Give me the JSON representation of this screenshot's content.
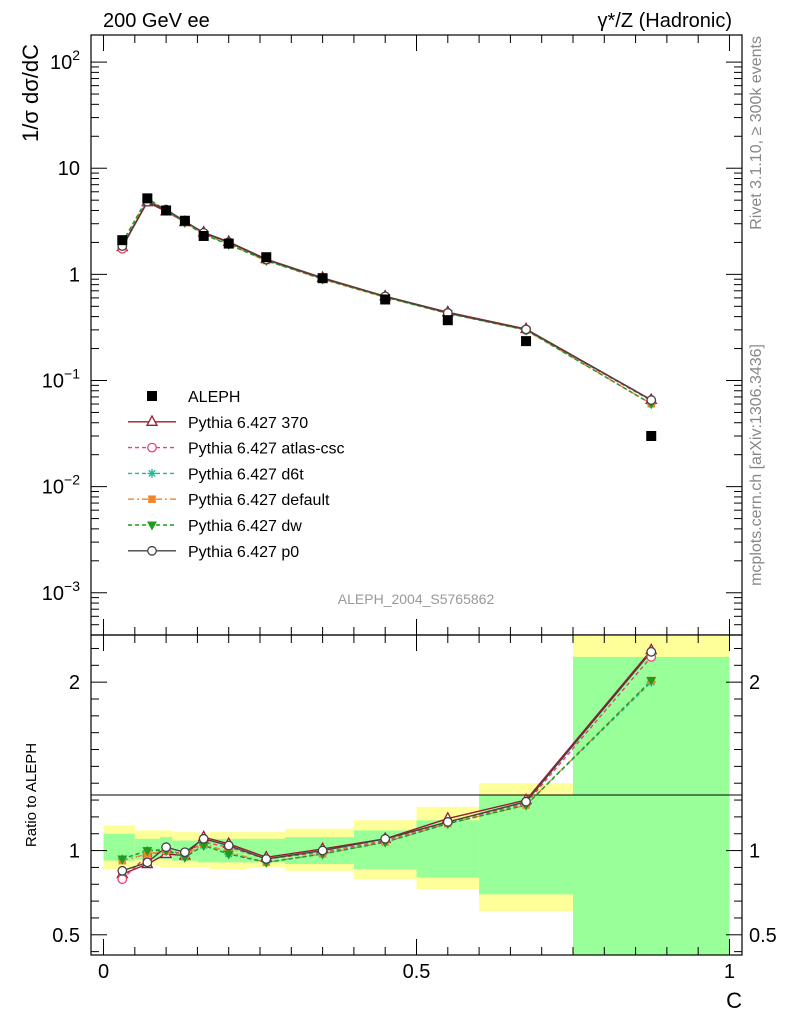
{
  "chart_data": {
    "type": "scatter",
    "title_left": "200 GeV ee",
    "title_right": "γ*/Z (Hadronic)",
    "ylabel": "1/σ dσ/dC",
    "xlabel": "C",
    "ratio_ylabel": "Ratio to ALEPH",
    "analysis_label": "ALEPH_2004_S5765862",
    "side_label_top": "Rivet 3.1.10, ≥ 300k events",
    "side_label_bottom": "mcplots.cern.ch [arXiv:1306.3436]",
    "xlim": [
      -0.02,
      1.02
    ],
    "ylim_main": [
      0.0004,
      180
    ],
    "ylim_ratio": [
      0.38,
      2.28
    ],
    "x_ticks": [
      {
        "value": 0,
        "label": "0"
      },
      {
        "value": 0.5,
        "label": "0.5"
      },
      {
        "value": 1,
        "label": "1"
      }
    ],
    "y_ticks_main": [
      {
        "value": 0.001,
        "base": "10",
        "exp": "−3"
      },
      {
        "value": 0.01,
        "base": "10",
        "exp": "−2"
      },
      {
        "value": 0.1,
        "base": "10",
        "exp": "−1"
      },
      {
        "value": 1,
        "base": "1",
        "exp": ""
      },
      {
        "value": 10,
        "base": "10",
        "exp": ""
      },
      {
        "value": 100,
        "base": "10",
        "exp": "2"
      }
    ],
    "y_ticks_ratio": [
      {
        "value": 0.5,
        "label": "0.5"
      },
      {
        "value": 1,
        "label": "1"
      },
      {
        "value": 2,
        "label": "2"
      }
    ],
    "x": [
      0.03,
      0.07,
      0.1,
      0.13,
      0.16,
      0.2,
      0.26,
      0.35,
      0.45,
      0.55,
      0.675,
      0.875
    ],
    "bin_edges": [
      0.0,
      0.05,
      0.09,
      0.11,
      0.15,
      0.17,
      0.23,
      0.29,
      0.4,
      0.5,
      0.6,
      0.75,
      1.0
    ],
    "data": {
      "name": "ALEPH",
      "values": [
        2.1,
        5.2,
        4.0,
        3.2,
        2.3,
        1.95,
        1.45,
        0.92,
        0.58,
        0.37,
        0.235,
        0.03
      ]
    },
    "bands": {
      "inner": [
        [
          0.94,
          1.1
        ],
        [
          0.95,
          1.07
        ],
        [
          0.95,
          1.08
        ],
        [
          0.94,
          1.06
        ],
        [
          0.93,
          1.06
        ],
        [
          0.93,
          1.07
        ],
        [
          0.93,
          1.07
        ],
        [
          0.92,
          1.08
        ],
        [
          0.89,
          1.12
        ],
        [
          0.84,
          1.18
        ],
        [
          0.74,
          1.33
        ],
        [
          0.38,
          2.15
        ]
      ],
      "outer": [
        [
          0.89,
          1.15
        ],
        [
          0.91,
          1.12
        ],
        [
          0.9,
          1.12
        ],
        [
          0.9,
          1.11
        ],
        [
          0.9,
          1.1
        ],
        [
          0.89,
          1.11
        ],
        [
          0.9,
          1.11
        ],
        [
          0.88,
          1.13
        ],
        [
          0.83,
          1.18
        ],
        [
          0.77,
          1.26
        ],
        [
          0.64,
          1.4
        ],
        [
          0.38,
          2.28
        ]
      ]
    },
    "series": [
      {
        "name": "Pythia 6.427 370",
        "color": "#9b1c2e",
        "marker": "triangle-open",
        "dash": "",
        "ratio": [
          0.86,
          0.92,
          0.98,
          0.97,
          1.08,
          1.04,
          0.96,
          1.01,
          1.07,
          1.19,
          1.3,
          2.19
        ]
      },
      {
        "name": "Pythia 6.427 atlas-csc",
        "color": "#e8436e",
        "marker": "circle-open",
        "dash": "4,3",
        "ratio": [
          0.83,
          0.97,
          1.0,
          0.98,
          1.05,
          1.02,
          0.95,
          0.99,
          1.06,
          1.17,
          1.28,
          2.15
        ]
      },
      {
        "name": "Pythia 6.427 d6t",
        "color": "#2bb5a0",
        "marker": "asterisk",
        "dash": "4,3",
        "ratio": [
          0.95,
          1.0,
          1.01,
          0.96,
          1.03,
          0.98,
          0.93,
          0.98,
          1.05,
          1.16,
          1.27,
          2.0
        ]
      },
      {
        "name": "Pythia 6.427 default",
        "color": "#f0852d",
        "marker": "square",
        "dash": "6,3,2,3",
        "ratio": [
          0.94,
          0.98,
          1.0,
          0.97,
          1.04,
          0.99,
          0.93,
          0.98,
          1.05,
          1.16,
          1.27,
          2.01
        ]
      },
      {
        "name": "Pythia 6.427 dw",
        "color": "#1e9e1e",
        "marker": "triangle-down",
        "dash": "4,3",
        "ratio": [
          0.95,
          1.0,
          1.0,
          0.96,
          1.03,
          0.98,
          0.93,
          0.98,
          1.05,
          1.16,
          1.27,
          2.01
        ]
      },
      {
        "name": "Pythia 6.427 p0",
        "color": "#444444",
        "marker": "circle-open",
        "dash": "",
        "ratio": [
          0.88,
          0.93,
          1.02,
          0.99,
          1.07,
          1.03,
          0.95,
          1.0,
          1.07,
          1.17,
          1.29,
          2.18
        ]
      }
    ]
  }
}
